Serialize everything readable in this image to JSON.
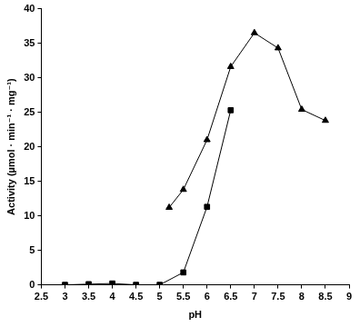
{
  "chart_data": {
    "type": "line",
    "x_label": "pH",
    "y_label": "Activity (µmol · min⁻¹ · mg⁻¹)",
    "series": [
      {
        "color": "#000000",
        "marker": "triangle",
        "line_style": "solid",
        "x": [
          5.2,
          5.5,
          6.0,
          6.5,
          7.0,
          7.5,
          8.0,
          8.5
        ],
        "values": [
          11.2,
          13.8,
          21.0,
          31.6,
          36.5,
          34.3,
          25.4,
          23.8
        ]
      },
      {
        "color": "#000000",
        "marker": "square",
        "line_style": "solid",
        "x": [
          3.0,
          3.5,
          4.0,
          4.5,
          5.0,
          5.5,
          6.0,
          6.5
        ],
        "values": [
          0,
          0.1,
          0.2,
          0,
          0,
          1.8,
          11.3,
          25.3
        ]
      }
    ],
    "xlim": [
      2.5,
      9
    ],
    "xticks": [
      2.5,
      3,
      3.5,
      4,
      4.5,
      5,
      5.5,
      6,
      6.5,
      7,
      7.5,
      8,
      8.5,
      9
    ],
    "ylim": [
      0,
      40
    ],
    "yticks": [
      0,
      5,
      10,
      15,
      20,
      25,
      30,
      35,
      40
    ],
    "grid": false
  }
}
